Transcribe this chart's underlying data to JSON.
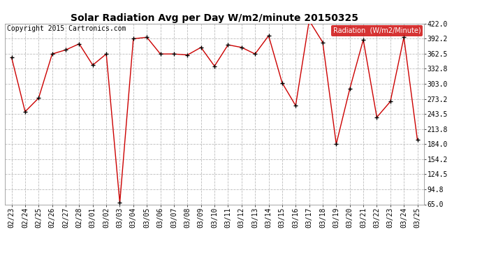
{
  "title": "Solar Radiation Avg per Day W/m2/minute 20150325",
  "copyright": "Copyright 2015 Cartronics.com",
  "legend_label": "Radiation  (W/m2/Minute)",
  "dates": [
    "02/23",
    "02/24",
    "02/25",
    "02/26",
    "02/27",
    "02/28",
    "03/01",
    "03/02",
    "03/03",
    "03/04",
    "03/05",
    "03/06",
    "03/07",
    "03/08",
    "03/09",
    "03/10",
    "03/11",
    "03/12",
    "03/13",
    "03/14",
    "03/15",
    "03/16",
    "03/17",
    "03/18",
    "03/19",
    "03/20",
    "03/21",
    "03/22",
    "03/23",
    "03/24",
    "03/25"
  ],
  "values": [
    355,
    248,
    275,
    362,
    370,
    382,
    340,
    362,
    68,
    392,
    395,
    362,
    362,
    360,
    375,
    338,
    380,
    375,
    362,
    398,
    305,
    260,
    428,
    385,
    184,
    293,
    390,
    237,
    268,
    395,
    192
  ],
  "line_color": "#cc0000",
  "marker_color": "#000000",
  "bg_color": "#ffffff",
  "grid_color": "#bbbbbb",
  "ylim": [
    65.0,
    422.0
  ],
  "yticks": [
    65.0,
    94.8,
    124.5,
    154.2,
    184.0,
    213.8,
    243.5,
    273.2,
    303.0,
    332.8,
    362.5,
    392.2,
    422.0
  ],
  "title_fontsize": 10,
  "axis_fontsize": 7,
  "copyright_fontsize": 7,
  "legend_bg": "#cc0000",
  "legend_text_color": "#ffffff",
  "legend_fontsize": 7
}
